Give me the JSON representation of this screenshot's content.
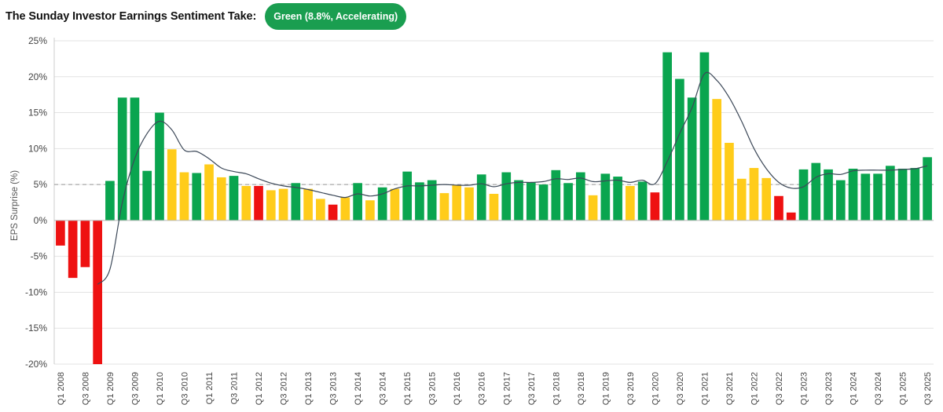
{
  "header": {
    "title": "The Sunday Investor Earnings Sentiment Take:",
    "badge": "Green (8.8%, Accelerating)"
  },
  "colors": {
    "green": "#0aa54f",
    "yellow": "#ffcc1a",
    "red": "#ee1111",
    "line": "#3c4858",
    "grid": "#e3e3e3",
    "reference": "#999999",
    "badge": "#1a9e50"
  },
  "chart_data": {
    "type": "bar",
    "ylabel": "EPS Surprise (%)",
    "ylim": [
      -20,
      25
    ],
    "yticks": [
      -20,
      -15,
      -10,
      -5,
      0,
      5,
      10,
      15,
      20,
      25
    ],
    "ytick_labels": [
      "-20%",
      "-15%",
      "-10%",
      "-5%",
      "0%",
      "5%",
      "10%",
      "15%",
      "20%",
      "25%"
    ],
    "reference_line": 5,
    "grid": true,
    "legend": "none",
    "categories": [
      "Q1 2008",
      "Q2 2008",
      "Q3 2008",
      "Q4 2008",
      "Q1 2009",
      "Q2 2009",
      "Q3 2009",
      "Q4 2009",
      "Q1 2010",
      "Q2 2010",
      "Q3 2010",
      "Q4 2010",
      "Q1 2011",
      "Q2 2011",
      "Q3 2011",
      "Q4 2011",
      "Q1 2012",
      "Q2 2012",
      "Q3 2012",
      "Q4 2012",
      "Q1 2013",
      "Q2 2013",
      "Q3 2013",
      "Q4 2013",
      "Q1 2014",
      "Q2 2014",
      "Q3 2014",
      "Q4 2014",
      "Q1 2015",
      "Q2 2015",
      "Q3 2015",
      "Q4 2015",
      "Q1 2016",
      "Q2 2016",
      "Q3 2016",
      "Q4 2016",
      "Q1 2017",
      "Q2 2017",
      "Q3 2017",
      "Q4 2017",
      "Q1 2018",
      "Q2 2018",
      "Q3 2018",
      "Q4 2018",
      "Q1 2019",
      "Q2 2019",
      "Q3 2019",
      "Q4 2019",
      "Q1 2020",
      "Q2 2020",
      "Q3 2020",
      "Q4 2020",
      "Q1 2021",
      "Q2 2021",
      "Q3 2021",
      "Q4 2021",
      "Q1 2022",
      "Q2 2022",
      "Q3 2022",
      "Q4 2022",
      "Q1 2023",
      "Q2 2023",
      "Q3 2023",
      "Q4 2023",
      "Q1 2024",
      "Q2 2024",
      "Q3 2024",
      "Q4 2024",
      "Q1 2025",
      "Q2 2025",
      "Q3 2025"
    ],
    "xtick_labels": [
      "Q1 2008",
      "Q3 2008",
      "Q1 2009",
      "Q3 2009",
      "Q1 2010",
      "Q3 2010",
      "Q1 2011",
      "Q3 2011",
      "Q1 2012",
      "Q3 2012",
      "Q1 2013",
      "Q3 2013",
      "Q1 2014",
      "Q3 2014",
      "Q1 2015",
      "Q3 2015",
      "Q1 2016",
      "Q3 2016",
      "Q1 2017",
      "Q3 2017",
      "Q1 2018",
      "Q3 2018",
      "Q1 2019",
      "Q3 2019",
      "Q1 2020",
      "Q3 2020",
      "Q1 2021",
      "Q3 2021",
      "Q1 2022",
      "Q3 2022",
      "Q1 2023",
      "Q3 2023",
      "Q1 2024",
      "Q3 2024",
      "Q1 2025",
      "Q3 2025"
    ],
    "values": [
      -3.5,
      -8.0,
      -6.5,
      -20.0,
      5.5,
      17.1,
      17.1,
      6.9,
      15.0,
      9.9,
      6.7,
      6.6,
      7.8,
      6.0,
      6.2,
      4.8,
      4.8,
      4.2,
      4.4,
      5.2,
      4.4,
      3.0,
      2.2,
      3.2,
      5.2,
      2.8,
      4.6,
      4.4,
      6.8,
      5.3,
      5.6,
      3.8,
      4.9,
      4.6,
      6.4,
      3.7,
      6.7,
      5.6,
      5.3,
      5.0,
      7.0,
      5.2,
      6.7,
      3.5,
      6.5,
      6.1,
      4.8,
      5.4,
      3.9,
      23.4,
      19.7,
      17.1,
      23.4,
      16.9,
      10.8,
      5.8,
      7.3,
      5.9,
      3.4,
      1.1,
      7.1,
      8.0,
      7.1,
      5.6,
      7.2,
      6.5,
      6.5,
      7.6,
      7.2,
      7.3,
      8.8
    ],
    "bar_colors": [
      "red",
      "red",
      "red",
      "red",
      "green",
      "green",
      "green",
      "green",
      "green",
      "yellow",
      "yellow",
      "green",
      "yellow",
      "yellow",
      "green",
      "yellow",
      "red",
      "yellow",
      "yellow",
      "green",
      "yellow",
      "yellow",
      "red",
      "yellow",
      "green",
      "yellow",
      "green",
      "yellow",
      "green",
      "green",
      "green",
      "yellow",
      "yellow",
      "yellow",
      "green",
      "yellow",
      "green",
      "green",
      "green",
      "green",
      "green",
      "green",
      "green",
      "yellow",
      "green",
      "green",
      "yellow",
      "green",
      "red",
      "green",
      "green",
      "green",
      "green",
      "yellow",
      "yellow",
      "yellow",
      "yellow",
      "yellow",
      "red",
      "red",
      "green",
      "green",
      "green",
      "green",
      "green",
      "green",
      "green",
      "green",
      "green",
      "green",
      "green"
    ],
    "trend_line": [
      null,
      null,
      null,
      -8.9,
      -6.8,
      2.5,
      8.6,
      12.1,
      13.8,
      12.6,
      9.8,
      9.6,
      8.6,
      7.3,
      6.8,
      6.5,
      5.8,
      5.2,
      4.8,
      4.6,
      4.3,
      3.9,
      3.5,
      3.2,
      3.7,
      3.4,
      3.7,
      4.4,
      4.8,
      4.8,
      4.9,
      5.0,
      4.9,
      4.9,
      5.1,
      4.7,
      5.1,
      5.3,
      5.3,
      5.4,
      5.8,
      5.7,
      5.9,
      5.4,
      5.5,
      5.6,
      5.3,
      5.6,
      5.1,
      8.2,
      12.1,
      15.7,
      20.4,
      19.5,
      17.1,
      13.8,
      10.0,
      7.2,
      5.3,
      4.5,
      4.7,
      6.0,
      6.5,
      6.4,
      6.9,
      7.0,
      7.0,
      7.0,
      7.1,
      7.2,
      7.6
    ]
  }
}
